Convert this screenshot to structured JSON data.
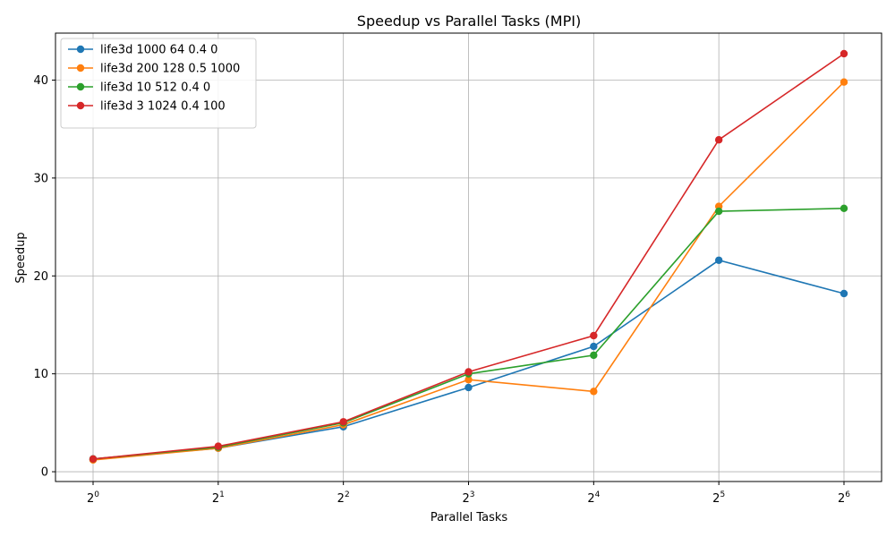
{
  "chart_data": {
    "type": "line",
    "title": "Speedup vs Parallel Tasks (MPI)",
    "xlabel": "Parallel Tasks",
    "ylabel": "Speedup",
    "x_scale": "log2",
    "x": [
      1,
      2,
      4,
      8,
      16,
      32,
      64
    ],
    "x_tick_base": "2",
    "x_tick_exponents": [
      "0",
      "1",
      "2",
      "3",
      "4",
      "5",
      "6"
    ],
    "y_ticks": [
      "0",
      "10",
      "20",
      "30",
      "40"
    ],
    "ylim": [
      -1,
      44.8
    ],
    "grid": true,
    "legend_position": "top-left",
    "series": [
      {
        "name": "life3d 1000 64 0.4 0",
        "color": "#1f77b4",
        "values": [
          1.3,
          2.4,
          4.6,
          8.6,
          12.8,
          21.6,
          18.2
        ]
      },
      {
        "name": "life3d 200 128 0.5 1000",
        "color": "#ff7f0e",
        "values": [
          1.2,
          2.4,
          4.8,
          9.4,
          8.2,
          27.1,
          39.8
        ]
      },
      {
        "name": "life3d 10 512 0.4 0",
        "color": "#2ca02c",
        "values": [
          1.3,
          2.5,
          5.0,
          10.0,
          11.9,
          26.6,
          26.9
        ]
      },
      {
        "name": "life3d 3 1024 0.4 100",
        "color": "#d62728",
        "values": [
          1.3,
          2.6,
          5.1,
          10.2,
          13.9,
          33.9,
          42.7
        ]
      }
    ]
  }
}
